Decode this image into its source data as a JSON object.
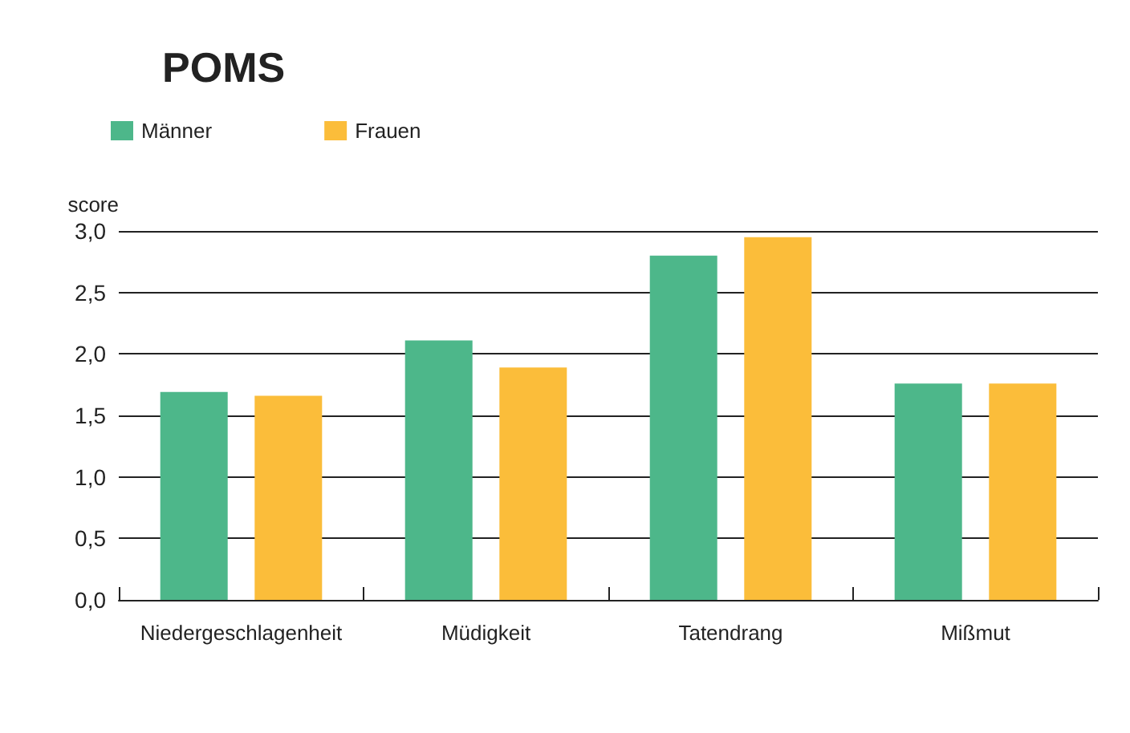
{
  "chart_data": {
    "type": "bar",
    "title": "POMS",
    "ylabel": "score",
    "categories": [
      "Niedergeschlagenheit",
      "Müdigkeit",
      "Tatendrang",
      "Mißmut"
    ],
    "series": [
      {
        "name": "Männer",
        "color": "#4db78a",
        "values": [
          1.69,
          2.11,
          2.8,
          1.76
        ]
      },
      {
        "name": "Frauen",
        "color": "#fbbd3a",
        "values": [
          1.66,
          1.89,
          2.95,
          1.76
        ]
      }
    ],
    "ylim": [
      0,
      3
    ],
    "yticks": [
      {
        "value": 0,
        "label": "0,0"
      },
      {
        "value": 0.5,
        "label": "0,5"
      },
      {
        "value": 1,
        "label": "1,0"
      },
      {
        "value": 1.5,
        "label": "1,5"
      },
      {
        "value": 2,
        "label": "2,0"
      },
      {
        "value": 2.5,
        "label": "2,5"
      },
      {
        "value": 3,
        "label": "3,0"
      }
    ],
    "grid": "y",
    "legend": "top left"
  }
}
